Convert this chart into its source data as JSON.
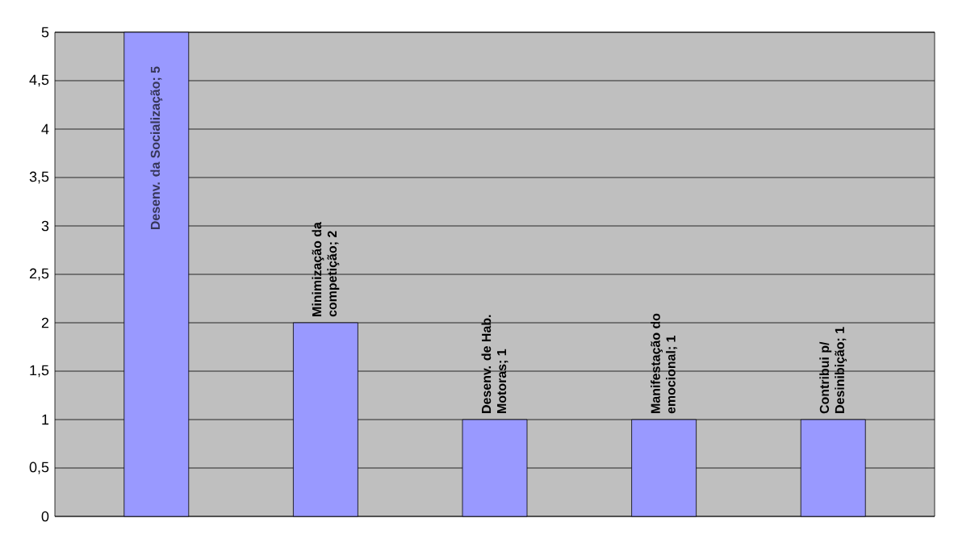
{
  "chart_data": {
    "type": "bar",
    "categories": [
      null,
      null,
      null,
      null,
      null
    ],
    "values": [
      5,
      2,
      1,
      1,
      1
    ],
    "value_labels": [
      "Desenv. da Socialização; 5",
      "Minimização da competição; 2",
      "Desenv. de Hab. Motoras; 1",
      "Manifestação do emocional; 1",
      "Contribui p/ Desinibição; 1"
    ],
    "color": "#9999ff",
    "ylim": [
      0,
      5
    ],
    "yticks": [
      0,
      {
        "value": 0.5,
        "label": "0,5"
      },
      1,
      {
        "value": 1.5,
        "label": "1,5"
      },
      2,
      {
        "value": 2.5,
        "label": "2,5"
      },
      3,
      {
        "value": 3.5,
        "label": "3,5"
      },
      4,
      {
        "value": 4.5,
        "label": "4,5"
      },
      5
    ],
    "grid": "y"
  }
}
